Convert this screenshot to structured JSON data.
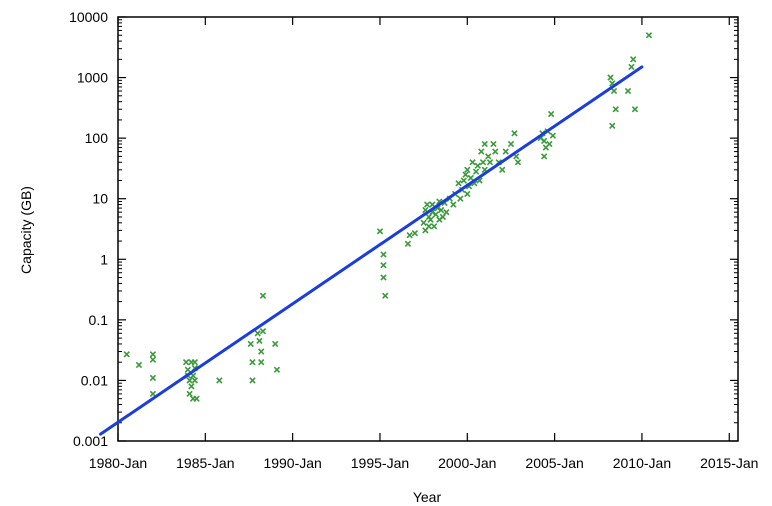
{
  "chart_data": {
    "type": "scatter",
    "title": "",
    "xlabel": "Year",
    "ylabel": "Capacity (GB)",
    "x_ticks": [
      "1980-Jan",
      "1985-Jan",
      "1990-Jan",
      "1995-Jan",
      "2000-Jan",
      "2005-Jan",
      "2010-Jan",
      "2015-Jan"
    ],
    "y_ticks": [
      "0.001",
      "0.01",
      "0.1",
      "1",
      "10",
      "100",
      "1000",
      "10000"
    ],
    "xlim": [
      1980,
      2015.5
    ],
    "ylim": [
      0.001,
      10000
    ],
    "y_scale": "log",
    "grid": false,
    "legend": "none",
    "colors": {
      "points": "#3a9a3a",
      "trend": "#1a3de0",
      "axis": "#000000"
    },
    "series": [
      {
        "type": "scatter",
        "marker": "x",
        "points": [
          [
            1980.5,
            0.027
          ],
          [
            1981.2,
            0.018
          ],
          [
            1982.0,
            0.027
          ],
          [
            1982.0,
            0.022
          ],
          [
            1982.0,
            0.011
          ],
          [
            1982.0,
            0.006
          ],
          [
            1983.9,
            0.02
          ],
          [
            1984.0,
            0.015
          ],
          [
            1984.0,
            0.012
          ],
          [
            1984.1,
            0.01
          ],
          [
            1984.1,
            0.006
          ],
          [
            1984.2,
            0.02
          ],
          [
            1984.2,
            0.008
          ],
          [
            1984.3,
            0.012
          ],
          [
            1984.3,
            0.005
          ],
          [
            1984.4,
            0.016
          ],
          [
            1984.4,
            0.02
          ],
          [
            1984.4,
            0.01
          ],
          [
            1984.5,
            0.005
          ],
          [
            1985.8,
            0.01
          ],
          [
            1987.6,
            0.04
          ],
          [
            1987.7,
            0.02
          ],
          [
            1987.7,
            0.01
          ],
          [
            1988.0,
            0.06
          ],
          [
            1988.1,
            0.045
          ],
          [
            1988.2,
            0.03
          ],
          [
            1988.2,
            0.02
          ],
          [
            1988.3,
            0.25
          ],
          [
            1988.3,
            0.065
          ],
          [
            1989.0,
            0.04
          ],
          [
            1989.1,
            0.015
          ],
          [
            1995.0,
            2.9
          ],
          [
            1995.2,
            1.2
          ],
          [
            1995.2,
            0.8
          ],
          [
            1995.2,
            0.5
          ],
          [
            1995.3,
            0.25
          ],
          [
            1996.6,
            1.8
          ],
          [
            1996.7,
            2.5
          ],
          [
            1997.0,
            2.7
          ],
          [
            1997.5,
            4.0
          ],
          [
            1997.6,
            6.5
          ],
          [
            1997.6,
            3.0
          ],
          [
            1997.7,
            8.0
          ],
          [
            1997.8,
            5.0
          ],
          [
            1997.8,
            3.5
          ],
          [
            1997.9,
            4.5
          ],
          [
            1998.0,
            6.0
          ],
          [
            1998.0,
            8.0
          ],
          [
            1998.1,
            3.5
          ],
          [
            1998.2,
            5.5
          ],
          [
            1998.3,
            7.0
          ],
          [
            1998.4,
            4.5
          ],
          [
            1998.4,
            9.0
          ],
          [
            1998.5,
            6.5
          ],
          [
            1998.6,
            5.0
          ],
          [
            1998.7,
            8.5
          ],
          [
            1998.8,
            6.0
          ],
          [
            1999.0,
            10
          ],
          [
            1999.2,
            8
          ],
          [
            1999.3,
            12
          ],
          [
            1999.5,
            18
          ],
          [
            1999.6,
            10
          ],
          [
            1999.7,
            14
          ],
          [
            1999.8,
            20
          ],
          [
            1999.9,
            25
          ],
          [
            2000.0,
            12
          ],
          [
            2000.0,
            30
          ],
          [
            2000.1,
            16
          ],
          [
            2000.2,
            22
          ],
          [
            2000.3,
            40
          ],
          [
            2000.4,
            18
          ],
          [
            2000.5,
            28
          ],
          [
            2000.6,
            35
          ],
          [
            2000.7,
            20
          ],
          [
            2000.8,
            60
          ],
          [
            2000.9,
            40
          ],
          [
            2001.0,
            80
          ],
          [
            2001.0,
            30
          ],
          [
            2001.2,
            50
          ],
          [
            2001.3,
            40
          ],
          [
            2001.5,
            80
          ],
          [
            2001.6,
            60
          ],
          [
            2001.8,
            40
          ],
          [
            2002.0,
            30
          ],
          [
            2002.2,
            60
          ],
          [
            2002.5,
            80
          ],
          [
            2002.7,
            120
          ],
          [
            2002.8,
            50
          ],
          [
            2002.9,
            40
          ],
          [
            2004.2,
            100
          ],
          [
            2004.3,
            120
          ],
          [
            2004.4,
            90
          ],
          [
            2004.5,
            70
          ],
          [
            2004.6,
            130
          ],
          [
            2004.7,
            80
          ],
          [
            2004.8,
            250
          ],
          [
            2004.9,
            110
          ],
          [
            2004.4,
            50
          ],
          [
            2008.2,
            1000
          ],
          [
            2008.3,
            800
          ],
          [
            2008.4,
            600
          ],
          [
            2008.5,
            300
          ],
          [
            2008.3,
            160
          ],
          [
            2009.2,
            600
          ],
          [
            2009.4,
            1500
          ],
          [
            2009.5,
            2000
          ],
          [
            2009.6,
            300
          ],
          [
            2010.4,
            5000
          ]
        ]
      },
      {
        "type": "line",
        "points": [
          [
            1979.0,
            0.0013
          ],
          [
            2010.0,
            1500
          ]
        ]
      }
    ]
  }
}
